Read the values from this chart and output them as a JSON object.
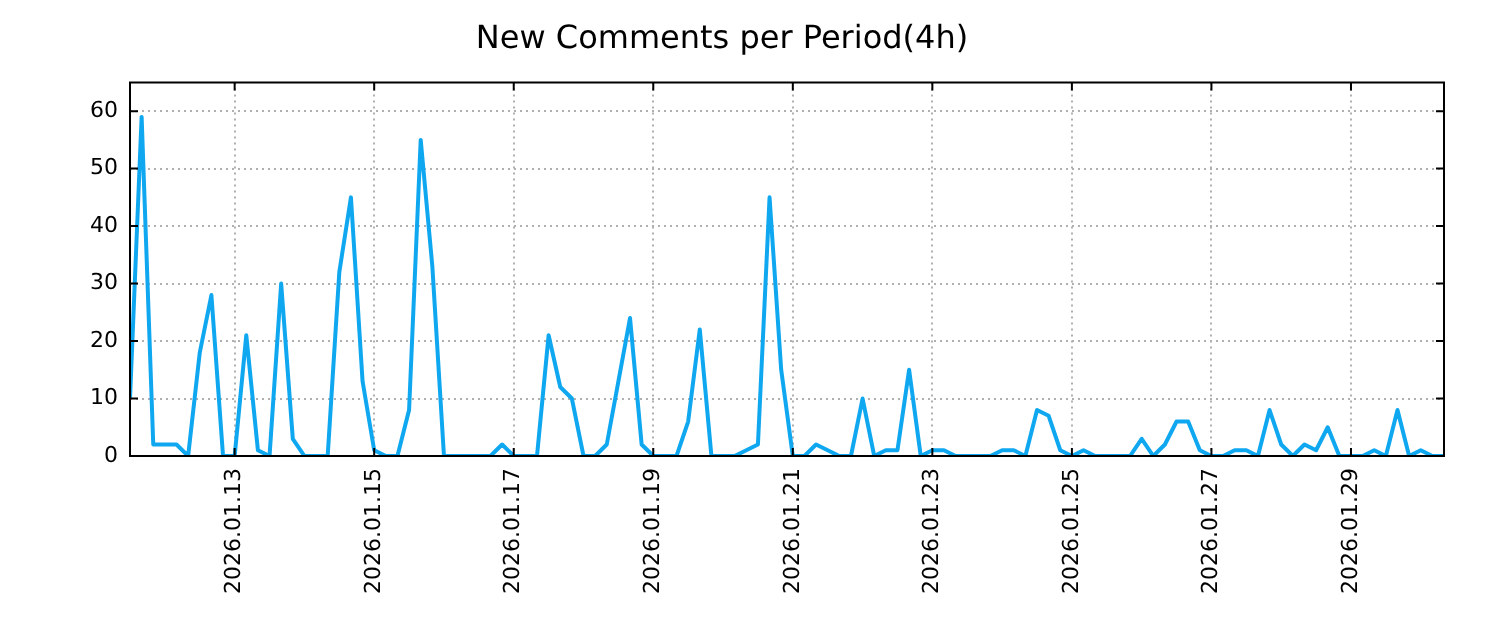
{
  "chart_data": {
    "type": "line",
    "title": "New Comments per Period(4h)",
    "x": [
      "2026-01-11T12:00",
      "2026-01-11T16:00",
      "2026-01-11T20:00",
      "2026-01-12T00:00",
      "2026-01-12T04:00",
      "2026-01-12T08:00",
      "2026-01-12T12:00",
      "2026-01-12T16:00",
      "2026-01-12T20:00",
      "2026-01-13T00:00",
      "2026-01-13T04:00",
      "2026-01-13T08:00",
      "2026-01-13T12:00",
      "2026-01-13T16:00",
      "2026-01-13T20:00",
      "2026-01-14T00:00",
      "2026-01-14T04:00",
      "2026-01-14T08:00",
      "2026-01-14T12:00",
      "2026-01-14T16:00",
      "2026-01-14T20:00",
      "2026-01-15T00:00",
      "2026-01-15T04:00",
      "2026-01-15T08:00",
      "2026-01-15T12:00",
      "2026-01-15T16:00",
      "2026-01-15T20:00",
      "2026-01-16T00:00",
      "2026-01-16T04:00",
      "2026-01-16T08:00",
      "2026-01-16T12:00",
      "2026-01-16T16:00",
      "2026-01-16T20:00",
      "2026-01-17T00:00",
      "2026-01-17T04:00",
      "2026-01-17T08:00",
      "2026-01-17T12:00",
      "2026-01-17T16:00",
      "2026-01-17T20:00",
      "2026-01-18T00:00",
      "2026-01-18T04:00",
      "2026-01-18T08:00",
      "2026-01-18T12:00",
      "2026-01-18T16:00",
      "2026-01-18T20:00",
      "2026-01-19T00:00",
      "2026-01-19T04:00",
      "2026-01-19T08:00",
      "2026-01-19T12:00",
      "2026-01-19T16:00",
      "2026-01-19T20:00",
      "2026-01-20T00:00",
      "2026-01-20T04:00",
      "2026-01-20T08:00",
      "2026-01-20T12:00",
      "2026-01-20T16:00",
      "2026-01-20T20:00",
      "2026-01-21T00:00",
      "2026-01-21T04:00",
      "2026-01-21T08:00",
      "2026-01-21T12:00",
      "2026-01-21T16:00",
      "2026-01-21T20:00",
      "2026-01-22T00:00",
      "2026-01-22T04:00",
      "2026-01-22T08:00",
      "2026-01-22T12:00",
      "2026-01-22T16:00",
      "2026-01-22T20:00",
      "2026-01-23T00:00",
      "2026-01-23T04:00",
      "2026-01-23T08:00",
      "2026-01-23T12:00",
      "2026-01-23T16:00",
      "2026-01-23T20:00",
      "2026-01-24T00:00",
      "2026-01-24T04:00",
      "2026-01-24T08:00",
      "2026-01-24T12:00",
      "2026-01-24T16:00",
      "2026-01-24T20:00",
      "2026-01-25T00:00",
      "2026-01-25T04:00",
      "2026-01-25T08:00",
      "2026-01-25T12:00",
      "2026-01-25T16:00",
      "2026-01-25T20:00",
      "2026-01-26T00:00",
      "2026-01-26T04:00",
      "2026-01-26T08:00",
      "2026-01-26T12:00",
      "2026-01-26T16:00",
      "2026-01-26T20:00",
      "2026-01-27T00:00",
      "2026-01-27T04:00",
      "2026-01-27T08:00",
      "2026-01-27T12:00",
      "2026-01-27T16:00",
      "2026-01-27T20:00",
      "2026-01-28T00:00",
      "2026-01-28T04:00",
      "2026-01-28T08:00",
      "2026-01-28T12:00",
      "2026-01-28T16:00",
      "2026-01-28T20:00",
      "2026-01-29T00:00",
      "2026-01-29T04:00",
      "2026-01-29T08:00",
      "2026-01-29T12:00",
      "2026-01-29T16:00",
      "2026-01-29T20:00",
      "2026-01-30T00:00",
      "2026-01-30T04:00",
      "2026-01-30T08:00"
    ],
    "series": [
      {
        "color": "#0fa8f0",
        "values": [
          10,
          59,
          2,
          2,
          2,
          0,
          18,
          28,
          0,
          0,
          21,
          1,
          0,
          30,
          3,
          0,
          0,
          0,
          32,
          45,
          13,
          1,
          0,
          0,
          8,
          55,
          33,
          0,
          0,
          0,
          0,
          0,
          2,
          0,
          0,
          0,
          21,
          12,
          10,
          0,
          0,
          2,
          13,
          24,
          2,
          0,
          0,
          0,
          6,
          22,
          0,
          0,
          0,
          1,
          2,
          45,
          15,
          0,
          0,
          2,
          1,
          0,
          0,
          10,
          0,
          1,
          1,
          15,
          0,
          1,
          1,
          0,
          0,
          0,
          0,
          1,
          1,
          0,
          8,
          7,
          1,
          0,
          1,
          0,
          0,
          0,
          0,
          3,
          0,
          2,
          6,
          6,
          1,
          0,
          0,
          1,
          1,
          0,
          8,
          2,
          0,
          2,
          1,
          5,
          0,
          0,
          0,
          1,
          0,
          8,
          0,
          1,
          0,
          0
        ]
      }
    ],
    "xlim": [
      "2026-01-11T12:00",
      "2026-01-30T08:00"
    ],
    "xticks": [
      {
        "value": "2026-01-13",
        "label": "2026.01.13"
      },
      {
        "value": "2026-01-15",
        "label": "2026.01.15"
      },
      {
        "value": "2026-01-17",
        "label": "2026.01.17"
      },
      {
        "value": "2026-01-19",
        "label": "2026.01.19"
      },
      {
        "value": "2026-01-21",
        "label": "2026.01.21"
      },
      {
        "value": "2026-01-23",
        "label": "2026.01.23"
      },
      {
        "value": "2026-01-25",
        "label": "2026.01.25"
      },
      {
        "value": "2026-01-27",
        "label": "2026.01.27"
      },
      {
        "value": "2026-01-29",
        "label": "2026.01.29"
      }
    ],
    "ylim": [
      0,
      65
    ],
    "yticks": [
      0,
      10,
      20,
      30,
      40,
      50,
      60
    ],
    "grid": true,
    "legend": false,
    "marker": "none",
    "line_style": "solid"
  }
}
